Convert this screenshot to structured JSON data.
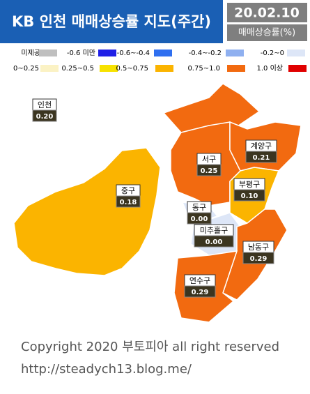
{
  "header": {
    "title": "KB 인천 매매상승률 지도(주간)",
    "date": "20.02.10",
    "unit": "매매상승률(%)"
  },
  "legend": [
    {
      "label": "미제공",
      "color": "#bfbfbf"
    },
    {
      "label": "-0.6 미만",
      "color": "#1f1fe6"
    },
    {
      "label": "-0.6~-0.4",
      "color": "#2f6ff0"
    },
    {
      "label": "-0.4~-0.2",
      "color": "#8fb0f0"
    },
    {
      "label": "-0.2~0",
      "color": "#dde6f7"
    },
    {
      "label": "0~0.25",
      "color": "#fbf2c4"
    },
    {
      "label": "0.25~0.5",
      "color": "#f7e200"
    },
    {
      "label": "0.5~0.75",
      "color": "#fbb400"
    },
    {
      "label": "0.75~1.0",
      "color": "#f26a10"
    },
    {
      "label": "1.0 이상",
      "color": "#e00000"
    }
  ],
  "regions": [
    {
      "name": "인천",
      "value": "0.20"
    },
    {
      "name": "서구",
      "value": "0.25"
    },
    {
      "name": "계양구",
      "value": "0.21"
    },
    {
      "name": "부평구",
      "value": "0.10"
    },
    {
      "name": "중구",
      "value": "0.18"
    },
    {
      "name": "동구",
      "value": "0.00"
    },
    {
      "name": "미추홀구",
      "value": "0.00"
    },
    {
      "name": "남동구",
      "value": "0.29"
    },
    {
      "name": "연수구",
      "value": "0.29"
    }
  ],
  "footer": {
    "copyright": "Copyright 2020 부토피아 all right reserved",
    "url": "http://steadych13.blog.me/"
  }
}
